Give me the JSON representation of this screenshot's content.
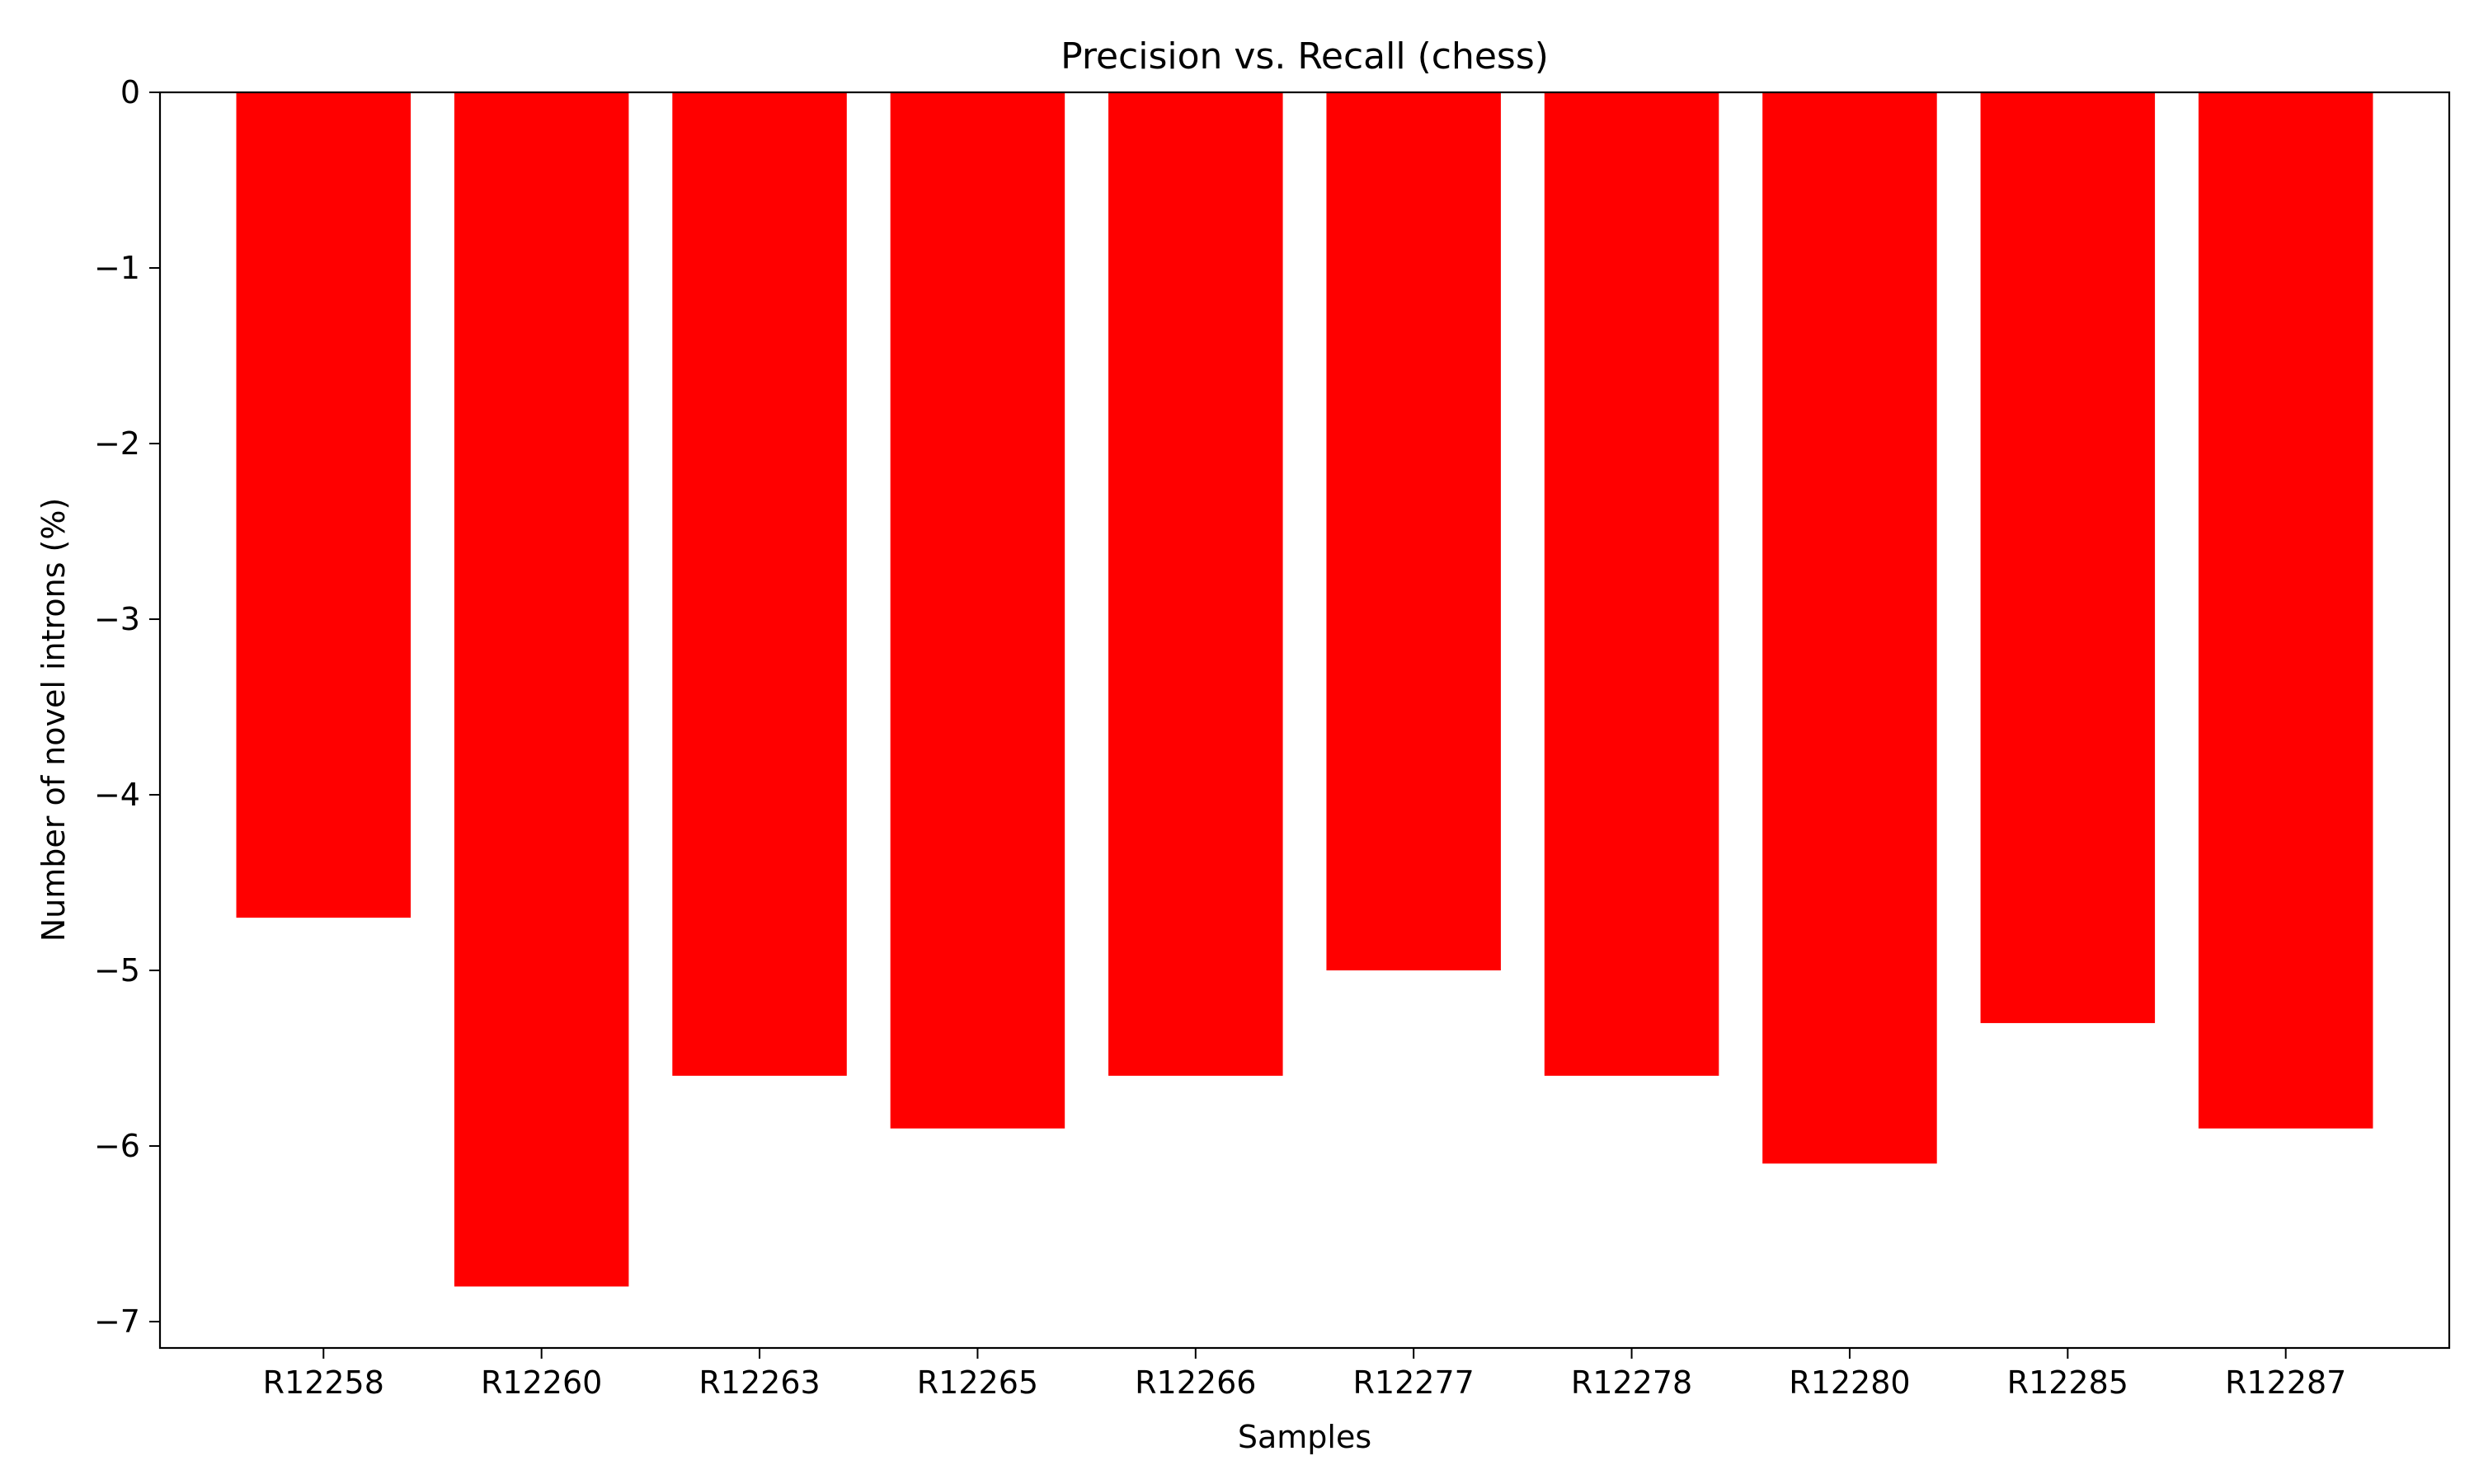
{
  "chart_data": {
    "type": "bar",
    "title": "Precision vs. Recall (chess)",
    "xlabel": "Samples",
    "ylabel": "Number of novel introns (%)",
    "categories": [
      "R12258",
      "R12260",
      "R12263",
      "R12265",
      "R12266",
      "R12277",
      "R12278",
      "R12280",
      "R12285",
      "R12287"
    ],
    "values": [
      -4.7,
      -6.8,
      -5.6,
      -5.9,
      -5.6,
      -5.0,
      -5.6,
      -6.1,
      -5.3,
      -5.9
    ],
    "ylim": [
      -7.15,
      0
    ],
    "yticks": [
      0,
      -1,
      -2,
      -3,
      -4,
      -5,
      -6,
      -7
    ],
    "ytick_labels": [
      "0",
      "−1",
      "−2",
      "−3",
      "−4",
      "−5",
      "−6",
      "−7"
    ],
    "bar_color": "#ff0000",
    "grid": false,
    "legend": "none"
  }
}
